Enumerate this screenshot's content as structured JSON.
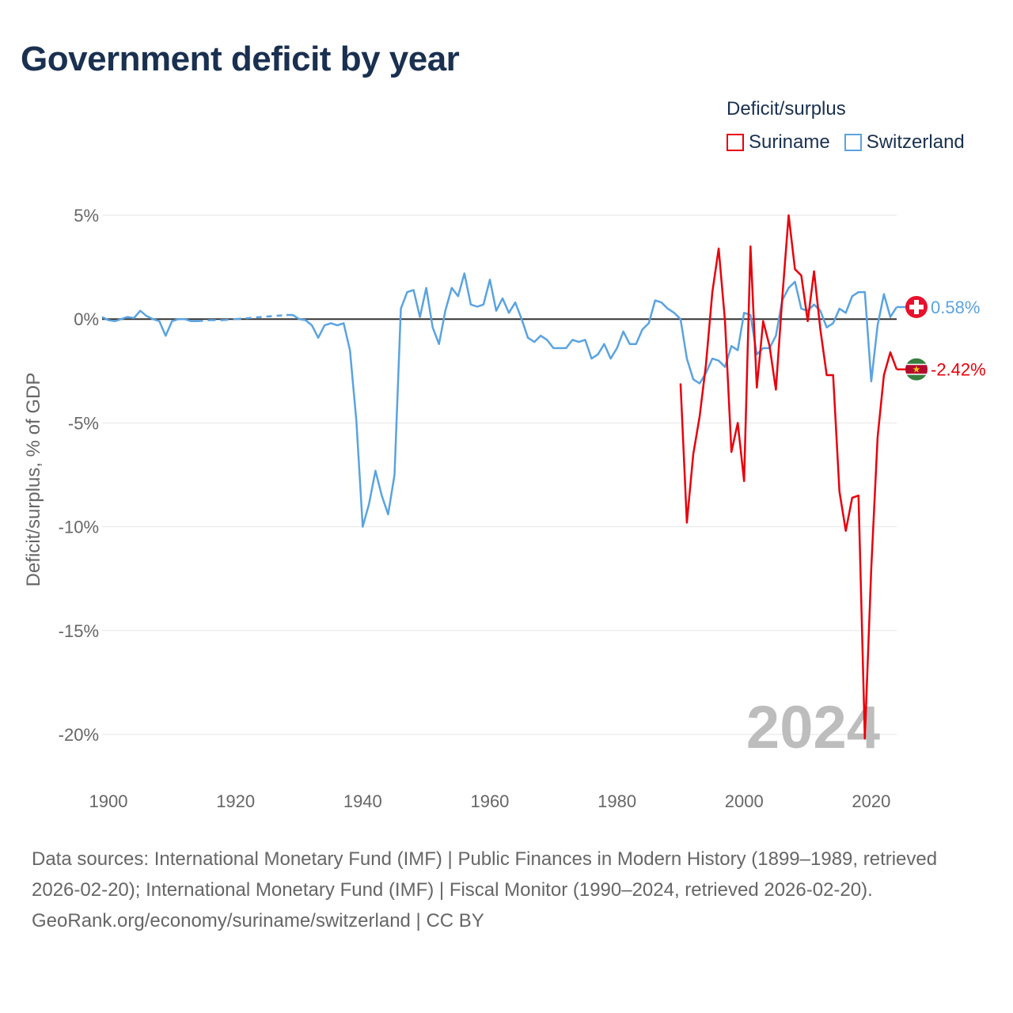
{
  "title": "Government deficit by year",
  "legend": {
    "title": "Deficit/surplus",
    "items": [
      {
        "label": "Suriname",
        "color": "#e8000b"
      },
      {
        "label": "Switzerland",
        "color": "#5aa3e0"
      }
    ]
  },
  "footer": {
    "sources": "Data sources: International Monetary Fund (IMF) | Public Finances in Modern History (1899–1989, retrieved 2026-02-20); International Monetary Fund (IMF) | Fiscal Monitor (1990–2024, retrieved 2026-02-20).",
    "credit": "GeoRank.org/economy/suriname/switzerland | CC BY"
  },
  "chart_data": {
    "type": "line",
    "title": "Government deficit by year",
    "xlabel": "",
    "ylabel": "Deficit/surplus, % of GDP",
    "xlim": [
      1899,
      2024
    ],
    "ylim": [
      -20,
      5
    ],
    "x_ticks": [
      1900,
      1920,
      1940,
      1960,
      1980,
      2000,
      2020
    ],
    "y_ticks": [
      5,
      0,
      -5,
      -10,
      -15,
      -20
    ],
    "y_tick_labels": [
      "5%",
      "0%",
      "-5%",
      "-10%",
      "-15%",
      "-20%"
    ],
    "year_watermark": "2024",
    "series": [
      {
        "name": "Suriname",
        "color": "#e8000b",
        "end_label": "-2.42%",
        "flag": "suriname-flag",
        "x": [
          1990,
          1991,
          1992,
          1993,
          1994,
          1995,
          1996,
          1997,
          1998,
          1999,
          2000,
          2001,
          2002,
          2003,
          2004,
          2005,
          2006,
          2007,
          2008,
          2009,
          2010,
          2011,
          2012,
          2013,
          2014,
          2015,
          2016,
          2017,
          2018,
          2019,
          2020,
          2021,
          2022,
          2023,
          2024
        ],
        "values": [
          -3.1,
          -9.8,
          -6.5,
          -4.7,
          -2.2,
          1.3,
          3.4,
          -0.1,
          -6.4,
          -5.0,
          -7.8,
          3.5,
          -3.3,
          -0.1,
          -1.3,
          -3.4,
          1.0,
          5.0,
          2.4,
          2.1,
          -0.1,
          2.3,
          -0.5,
          -2.7,
          -2.7,
          -8.3,
          -10.2,
          -8.6,
          -8.5,
          -20.2,
          -12.0,
          -5.7,
          -2.7,
          -1.6,
          -2.42
        ]
      },
      {
        "name": "Switzerland",
        "color": "#5aa3e0",
        "end_label": "0.58%",
        "flag": "switzerland-flag",
        "x": [
          1899,
          1900,
          1901,
          1902,
          1903,
          1904,
          1905,
          1906,
          1907,
          1908,
          1909,
          1910,
          1911,
          1912,
          1913,
          1914,
          1915,
          1916,
          1917,
          1918,
          1919,
          1920,
          1921,
          1922,
          1923,
          1924,
          1925,
          1926,
          1927,
          1928,
          1929,
          1930,
          1931,
          1932,
          1933,
          1934,
          1935,
          1936,
          1937,
          1938,
          1939,
          1940,
          1941,
          1942,
          1943,
          1944,
          1945,
          1946,
          1947,
          1948,
          1949,
          1950,
          1951,
          1952,
          1953,
          1954,
          1955,
          1956,
          1957,
          1958,
          1959,
          1960,
          1961,
          1962,
          1963,
          1964,
          1965,
          1966,
          1967,
          1968,
          1969,
          1970,
          1971,
          1972,
          1973,
          1974,
          1975,
          1976,
          1977,
          1978,
          1979,
          1980,
          1981,
          1982,
          1983,
          1984,
          1985,
          1986,
          1987,
          1988,
          1989,
          1990,
          1991,
          1992,
          1993,
          1994,
          1995,
          1996,
          1997,
          1998,
          1999,
          2000,
          2001,
          2002,
          2003,
          2004,
          2005,
          2006,
          2007,
          2008,
          2009,
          2010,
          2011,
          2012,
          2013,
          2014,
          2015,
          2016,
          2017,
          2018,
          2019,
          2020,
          2021,
          2022,
          2023,
          2024
        ],
        "values": [
          0.1,
          -0.05,
          -0.1,
          0.0,
          0.1,
          0.05,
          0.4,
          0.15,
          0.0,
          -0.1,
          -0.8,
          -0.1,
          0.0,
          0.0,
          -0.1,
          -0.1,
          null,
          -0.05,
          null,
          -0.05,
          null,
          0.0,
          null,
          null,
          null,
          null,
          null,
          null,
          null,
          0.2,
          0.2,
          0.0,
          -0.05,
          -0.3,
          -0.9,
          -0.3,
          -0.2,
          -0.3,
          -0.2,
          -1.5,
          -4.9,
          -10.0,
          -8.9,
          -7.3,
          -8.5,
          -9.4,
          -7.5,
          0.5,
          1.3,
          1.4,
          0.1,
          1.5,
          -0.4,
          -1.2,
          0.4,
          1.5,
          1.1,
          2.2,
          0.7,
          0.6,
          0.7,
          1.9,
          0.4,
          1.0,
          0.3,
          0.8,
          0.0,
          -0.9,
          -1.1,
          -0.8,
          -1.0,
          -1.4,
          -1.4,
          -1.4,
          -1.0,
          -1.1,
          -1.0,
          -1.9,
          -1.7,
          -1.2,
          -1.9,
          -1.4,
          -0.6,
          -1.2,
          -1.2,
          -0.5,
          -0.2,
          0.9,
          0.8,
          0.5,
          0.3,
          0.0,
          -1.9,
          -2.9,
          -3.1,
          -2.6,
          -1.9,
          -2.0,
          -2.3,
          -1.3,
          -1.5,
          0.3,
          0.2,
          -1.7,
          -1.4,
          -1.4,
          -0.8,
          0.9,
          1.5,
          1.8,
          0.5,
          0.4,
          0.7,
          0.4,
          -0.4,
          -0.2,
          0.5,
          0.3,
          1.1,
          1.3,
          1.3,
          -3.0,
          -0.3,
          1.2,
          0.1,
          0.58
        ]
      }
    ]
  }
}
